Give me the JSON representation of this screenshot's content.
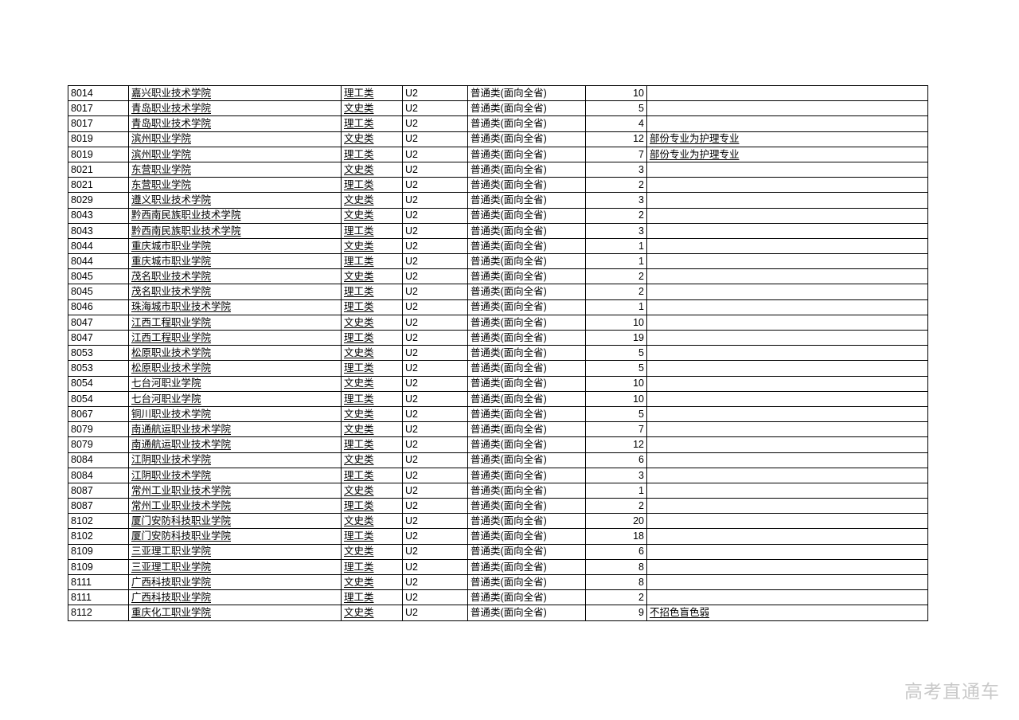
{
  "colors": {
    "background": "#ffffff",
    "border": "#000000",
    "text": "#000000",
    "watermark": "#c9c9c9"
  },
  "watermark": {
    "text": "高考直通车"
  },
  "table": {
    "rows": [
      {
        "code": "8014",
        "school": "嘉兴职业技术学院",
        "category": "理工类",
        "batch": "U2",
        "type": "普通类(面向全省)",
        "count": "10",
        "remark": ""
      },
      {
        "code": "8017",
        "school": "青岛职业技术学院",
        "category": "文史类",
        "batch": "U2",
        "type": "普通类(面向全省)",
        "count": "5",
        "remark": ""
      },
      {
        "code": "8017",
        "school": "青岛职业技术学院",
        "category": "理工类",
        "batch": "U2",
        "type": "普通类(面向全省)",
        "count": "4",
        "remark": ""
      },
      {
        "code": "8019",
        "school": "滨州职业学院",
        "category": "文史类",
        "batch": "U2",
        "type": "普通类(面向全省)",
        "count": "12",
        "remark": "部份专业为护理专业"
      },
      {
        "code": "8019",
        "school": "滨州职业学院",
        "category": "理工类",
        "batch": "U2",
        "type": "普通类(面向全省)",
        "count": "7",
        "remark": "部份专业为护理专业"
      },
      {
        "code": "8021",
        "school": "东营职业学院",
        "category": "文史类",
        "batch": "U2",
        "type": "普通类(面向全省)",
        "count": "3",
        "remark": ""
      },
      {
        "code": "8021",
        "school": "东营职业学院",
        "category": "理工类",
        "batch": "U2",
        "type": "普通类(面向全省)",
        "count": "2",
        "remark": ""
      },
      {
        "code": "8029",
        "school": "遵义职业技术学院",
        "category": "文史类",
        "batch": "U2",
        "type": "普通类(面向全省)",
        "count": "3",
        "remark": ""
      },
      {
        "code": "8043",
        "school": "黔西南民族职业技术学院",
        "category": "文史类",
        "batch": "U2",
        "type": "普通类(面向全省)",
        "count": "2",
        "remark": ""
      },
      {
        "code": "8043",
        "school": "黔西南民族职业技术学院",
        "category": "理工类",
        "batch": "U2",
        "type": "普通类(面向全省)",
        "count": "3",
        "remark": ""
      },
      {
        "code": "8044",
        "school": "重庆城市职业学院",
        "category": "文史类",
        "batch": "U2",
        "type": "普通类(面向全省)",
        "count": "1",
        "remark": ""
      },
      {
        "code": "8044",
        "school": "重庆城市职业学院",
        "category": "理工类",
        "batch": "U2",
        "type": "普通类(面向全省)",
        "count": "1",
        "remark": ""
      },
      {
        "code": "8045",
        "school": "茂名职业技术学院",
        "category": "文史类",
        "batch": "U2",
        "type": "普通类(面向全省)",
        "count": "2",
        "remark": ""
      },
      {
        "code": "8045",
        "school": "茂名职业技术学院",
        "category": "理工类",
        "batch": "U2",
        "type": "普通类(面向全省)",
        "count": "2",
        "remark": ""
      },
      {
        "code": "8046",
        "school": "珠海城市职业技术学院",
        "category": "理工类",
        "batch": "U2",
        "type": "普通类(面向全省)",
        "count": "1",
        "remark": ""
      },
      {
        "code": "8047",
        "school": "江西工程职业学院",
        "category": "文史类",
        "batch": "U2",
        "type": "普通类(面向全省)",
        "count": "10",
        "remark": ""
      },
      {
        "code": "8047",
        "school": "江西工程职业学院",
        "category": "理工类",
        "batch": "U2",
        "type": "普通类(面向全省)",
        "count": "19",
        "remark": ""
      },
      {
        "code": "8053",
        "school": "松原职业技术学院",
        "category": "文史类",
        "batch": "U2",
        "type": "普通类(面向全省)",
        "count": "5",
        "remark": ""
      },
      {
        "code": "8053",
        "school": "松原职业技术学院",
        "category": "理工类",
        "batch": "U2",
        "type": "普通类(面向全省)",
        "count": "5",
        "remark": ""
      },
      {
        "code": "8054",
        "school": "七台河职业学院",
        "category": "文史类",
        "batch": "U2",
        "type": "普通类(面向全省)",
        "count": "10",
        "remark": ""
      },
      {
        "code": "8054",
        "school": "七台河职业学院",
        "category": "理工类",
        "batch": "U2",
        "type": "普通类(面向全省)",
        "count": "10",
        "remark": ""
      },
      {
        "code": "8067",
        "school": "铜川职业技术学院",
        "category": "文史类",
        "batch": "U2",
        "type": "普通类(面向全省)",
        "count": "5",
        "remark": ""
      },
      {
        "code": "8079",
        "school": "南通航运职业技术学院",
        "category": "文史类",
        "batch": "U2",
        "type": "普通类(面向全省)",
        "count": "7",
        "remark": ""
      },
      {
        "code": "8079",
        "school": "南通航运职业技术学院",
        "category": "理工类",
        "batch": "U2",
        "type": "普通类(面向全省)",
        "count": "12",
        "remark": ""
      },
      {
        "code": "8084",
        "school": "江阴职业技术学院",
        "category": "文史类",
        "batch": "U2",
        "type": "普通类(面向全省)",
        "count": "6",
        "remark": ""
      },
      {
        "code": "8084",
        "school": "江阴职业技术学院",
        "category": "理工类",
        "batch": "U2",
        "type": "普通类(面向全省)",
        "count": "3",
        "remark": ""
      },
      {
        "code": "8087",
        "school": "常州工业职业技术学院",
        "category": "文史类",
        "batch": "U2",
        "type": "普通类(面向全省)",
        "count": "1",
        "remark": ""
      },
      {
        "code": "8087",
        "school": "常州工业职业技术学院",
        "category": "理工类",
        "batch": "U2",
        "type": "普通类(面向全省)",
        "count": "2",
        "remark": ""
      },
      {
        "code": "8102",
        "school": "厦门安防科技职业学院",
        "category": "文史类",
        "batch": "U2",
        "type": "普通类(面向全省)",
        "count": "20",
        "remark": ""
      },
      {
        "code": "8102",
        "school": "厦门安防科技职业学院",
        "category": "理工类",
        "batch": "U2",
        "type": "普通类(面向全省)",
        "count": "18",
        "remark": ""
      },
      {
        "code": "8109",
        "school": "三亚理工职业学院",
        "category": "文史类",
        "batch": "U2",
        "type": "普通类(面向全省)",
        "count": "6",
        "remark": ""
      },
      {
        "code": "8109",
        "school": "三亚理工职业学院",
        "category": "理工类",
        "batch": "U2",
        "type": "普通类(面向全省)",
        "count": "8",
        "remark": ""
      },
      {
        "code": "8111",
        "school": "广西科技职业学院",
        "category": "文史类",
        "batch": "U2",
        "type": "普通类(面向全省)",
        "count": "8",
        "remark": ""
      },
      {
        "code": "8111",
        "school": "广西科技职业学院",
        "category": "理工类",
        "batch": "U2",
        "type": "普通类(面向全省)",
        "count": "2",
        "remark": ""
      },
      {
        "code": "8112",
        "school": "重庆化工职业学院",
        "category": "文史类",
        "batch": "U2",
        "type": "普通类(面向全省)",
        "count": "9",
        "remark": "不招色盲色弱"
      }
    ]
  }
}
